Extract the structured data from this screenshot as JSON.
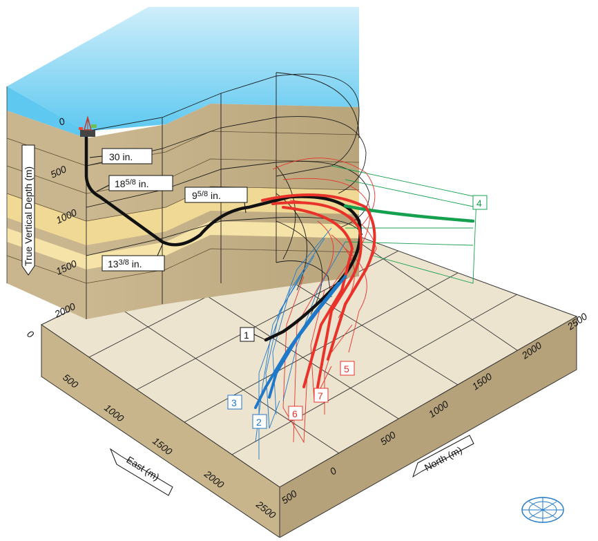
{
  "axes": {
    "tvd": {
      "title": "True Vertical Depth (m)",
      "ticks": [
        "0",
        "500",
        "1000",
        "1500",
        "2000"
      ]
    },
    "east": {
      "title": "East (m)",
      "ticks": [
        "0",
        "500",
        "1000",
        "1500",
        "2000",
        "2500"
      ]
    },
    "north": {
      "title": "North (m)",
      "ticks": [
        "500",
        "0",
        "500",
        "1000",
        "1500",
        "2000",
        "2500"
      ]
    }
  },
  "casing": {
    "c30": "30 in.",
    "c18_a": "18",
    "c18_b": "5/8",
    "c18_c": " in.",
    "c13_a": "13",
    "c13_b": "3/8",
    "c13_c": " in.",
    "c9_a": "9",
    "c9_b": "5/8",
    "c9_c": " in."
  },
  "wells": [
    {
      "id": "1",
      "color": "#1a1a1a"
    },
    {
      "id": "2",
      "color": "#1f78c8"
    },
    {
      "id": "3",
      "color": "#1f78c8"
    },
    {
      "id": "4",
      "color": "#15a050"
    },
    {
      "id": "5",
      "color": "#e8322a"
    },
    {
      "id": "6",
      "color": "#e8322a"
    },
    {
      "id": "7",
      "color": "#e8322a"
    }
  ],
  "colors": {
    "water": "#67cdf2",
    "soil_dark": "#c8b48c",
    "soil_light": "#f3dc96",
    "floor": "#ede4cf",
    "box_front": "#c7b48a",
    "box_side": "#b09c72"
  },
  "icons": [
    "drilling-rig-icon",
    "compass-rose-icon"
  ]
}
